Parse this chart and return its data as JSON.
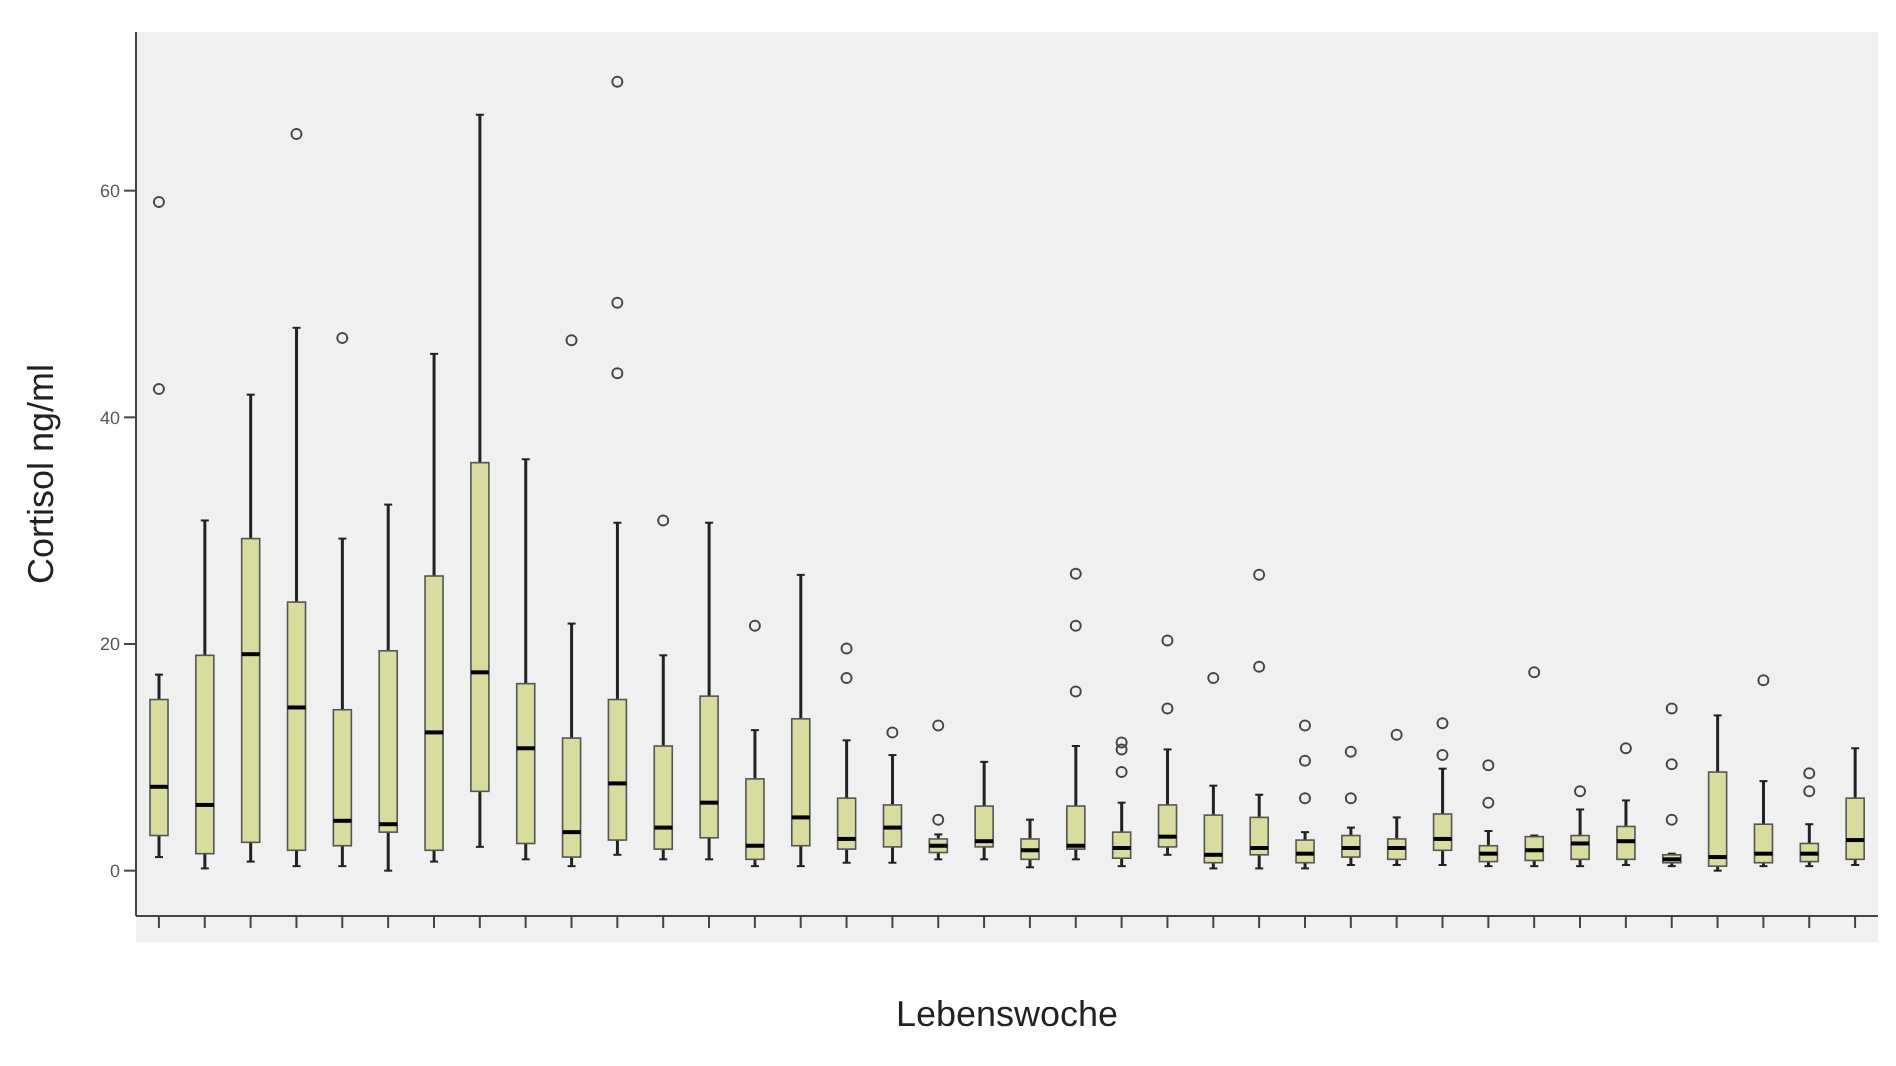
{
  "chart_data": {
    "type": "box",
    "xlabel": "Lebenswoche",
    "ylabel": "Cortisol ng/ml",
    "color": "#d8dc9c",
    "marker": "circle",
    "ylim": [
      -4,
      74
    ],
    "yticks": [
      0,
      20,
      40,
      60
    ],
    "categories": [
      null,
      null,
      null,
      null,
      null,
      null,
      null,
      null,
      null,
      null,
      null,
      null,
      null,
      null,
      null,
      null,
      null,
      null,
      null,
      null,
      null,
      null,
      null,
      null,
      null,
      null,
      null,
      null,
      null,
      null,
      null,
      null,
      null,
      null,
      null,
      null,
      null,
      null
    ],
    "boxes": [
      {
        "low": 1.2,
        "q1": 3.1,
        "median": 7.4,
        "q3": 15.1,
        "high": 17.3,
        "outliers": [
          59,
          42.5
        ]
      },
      {
        "low": 0.2,
        "q1": 1.5,
        "median": 5.8,
        "q3": 19,
        "high": 30.9
      },
      {
        "low": 0.8,
        "q1": 2.5,
        "median": 19.1,
        "q3": 29.3,
        "high": 42
      },
      {
        "low": 0.4,
        "q1": 1.8,
        "median": 14.4,
        "q3": 23.7,
        "high": 47.9,
        "outliers": [
          65
        ]
      },
      {
        "low": 0.4,
        "q1": 2.2,
        "median": 4.4,
        "q3": 14.2,
        "high": 29.3,
        "outliers": [
          47
        ]
      },
      {
        "low": 0,
        "q1": 3.4,
        "median": 4.1,
        "q3": 19.4,
        "high": 32.3
      },
      {
        "low": 0.8,
        "q1": 1.8,
        "median": 12.2,
        "q3": 26,
        "high": 45.6
      },
      {
        "low": 2.1,
        "q1": 7,
        "median": 17.5,
        "q3": 36,
        "high": 66.7
      },
      {
        "low": 1,
        "q1": 2.4,
        "median": 10.8,
        "q3": 16.5,
        "high": 36.3
      },
      {
        "low": 0.4,
        "q1": 1.2,
        "median": 3.4,
        "q3": 11.7,
        "high": 21.8,
        "outliers": [
          46.8
        ]
      },
      {
        "low": 1.4,
        "q1": 2.7,
        "median": 7.7,
        "q3": 15.1,
        "high": 30.7,
        "outliers": [
          69.6,
          50.1,
          43.9
        ]
      },
      {
        "low": 1,
        "q1": 1.9,
        "median": 3.8,
        "q3": 11,
        "high": 19,
        "outliers": [
          30.9
        ]
      },
      {
        "low": 1,
        "q1": 2.9,
        "median": 6,
        "q3": 15.4,
        "high": 30.7
      },
      {
        "low": 0.4,
        "q1": 1,
        "median": 2.2,
        "q3": 8.1,
        "high": 12.4,
        "outliers": [
          21.6
        ]
      },
      {
        "low": 0.4,
        "q1": 2.2,
        "median": 4.7,
        "q3": 13.4,
        "high": 26.1
      },
      {
        "low": 0.7,
        "q1": 1.9,
        "median": 2.8,
        "q3": 6.4,
        "high": 11.5,
        "outliers": [
          19.6,
          17
        ]
      },
      {
        "low": 0.7,
        "q1": 2.1,
        "median": 3.8,
        "q3": 5.8,
        "high": 10.2,
        "outliers": [
          12.2
        ]
      },
      {
        "low": 1,
        "q1": 1.6,
        "median": 2.2,
        "q3": 2.8,
        "high": 3.2,
        "outliers": [
          12.8,
          4.5
        ]
      },
      {
        "low": 1,
        "q1": 2.1,
        "median": 2.6,
        "q3": 5.7,
        "high": 9.6
      },
      {
        "low": 0.3,
        "q1": 1,
        "median": 1.8,
        "q3": 2.8,
        "high": 4.5
      },
      {
        "low": 1,
        "q1": 1.9,
        "median": 2.2,
        "q3": 5.7,
        "high": 11,
        "outliers": [
          26.2,
          21.6,
          15.8
        ]
      },
      {
        "low": 0.4,
        "q1": 1.1,
        "median": 2,
        "q3": 3.4,
        "high": 6,
        "outliers": [
          11.3,
          10.7,
          8.7
        ]
      },
      {
        "low": 1.4,
        "q1": 2.1,
        "median": 3,
        "q3": 5.8,
        "high": 10.7,
        "outliers": [
          20.3,
          14.3
        ]
      },
      {
        "low": 0.2,
        "q1": 0.7,
        "median": 1.4,
        "q3": 4.9,
        "high": 7.5,
        "outliers": [
          17
        ]
      },
      {
        "low": 0.2,
        "q1": 1.4,
        "median": 2,
        "q3": 4.7,
        "high": 6.7,
        "outliers": [
          26.1,
          18
        ]
      },
      {
        "low": 0.2,
        "q1": 0.7,
        "median": 1.5,
        "q3": 2.7,
        "high": 3.4,
        "outliers": [
          12.8,
          9.7,
          6.4
        ]
      },
      {
        "low": 0.5,
        "q1": 1.2,
        "median": 2,
        "q3": 3.1,
        "high": 3.8,
        "outliers": [
          10.5,
          6.4
        ]
      },
      {
        "low": 0.5,
        "q1": 1,
        "median": 2,
        "q3": 2.8,
        "high": 4.7,
        "outliers": [
          12
        ]
      },
      {
        "low": 0.5,
        "q1": 1.8,
        "median": 2.8,
        "q3": 5,
        "high": 9,
        "outliers": [
          13,
          10.2
        ]
      },
      {
        "low": 0.4,
        "q1": 0.8,
        "median": 1.5,
        "q3": 2.2,
        "high": 3.5,
        "outliers": [
          9.3,
          6
        ]
      },
      {
        "low": 0.4,
        "q1": 0.9,
        "median": 1.8,
        "q3": 3,
        "high": 3.1,
        "outliers": [
          17.5
        ]
      },
      {
        "low": 0.4,
        "q1": 1,
        "median": 2.4,
        "q3": 3.1,
        "high": 5.4,
        "outliers": [
          7
        ]
      },
      {
        "low": 0.5,
        "q1": 1,
        "median": 2.6,
        "q3": 3.9,
        "high": 6.2,
        "outliers": [
          10.8
        ]
      },
      {
        "low": 0.4,
        "q1": 0.7,
        "median": 1,
        "q3": 1.4,
        "high": 1.5,
        "outliers": [
          14.3,
          9.4,
          4.5
        ]
      },
      {
        "low": 0,
        "q1": 0.4,
        "median": 1.2,
        "q3": 8.7,
        "high": 13.7
      },
      {
        "low": 0.4,
        "q1": 0.7,
        "median": 1.5,
        "q3": 4.1,
        "high": 7.9,
        "outliers": [
          16.8
        ]
      },
      {
        "low": 0.4,
        "q1": 0.8,
        "median": 1.5,
        "q3": 2.4,
        "high": 4.1,
        "outliers": [
          8.6,
          7
        ]
      },
      {
        "low": 0.5,
        "q1": 1,
        "median": 2.7,
        "q3": 6.4,
        "high": 10.8
      }
    ]
  }
}
